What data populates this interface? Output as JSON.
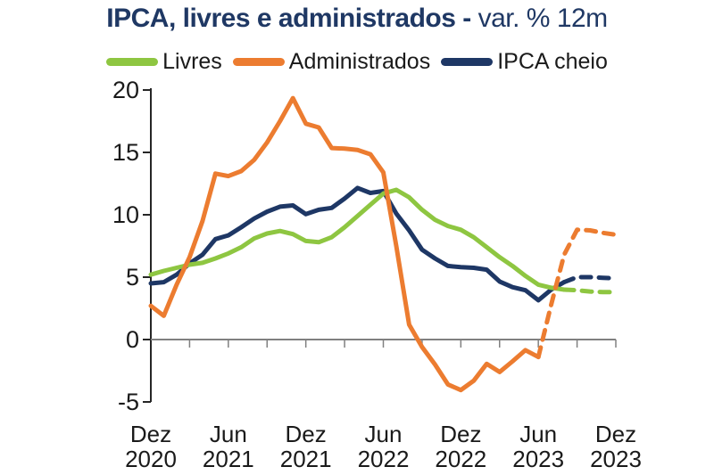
{
  "title": {
    "bold": "IPCA, livres e administrados -",
    "regular": " var. % 12m",
    "color": "#1F3864"
  },
  "colors": {
    "axis_line": "#262626",
    "zero_line": "#808080",
    "tick": "#808080",
    "label_text": "#1a1a1a",
    "background": "#ffffff"
  },
  "chart_data": {
    "type": "line",
    "title": "IPCA, livres e administrados - var. % 12m",
    "ylabel": "",
    "xlabel": "",
    "ylim": [
      -5,
      20
    ],
    "y_ticks": [
      20,
      15,
      10,
      5,
      0,
      -5
    ],
    "grid": false,
    "legend_position": "top",
    "x_monthly_from": "Dez 2020",
    "x_monthly_to": "Dez 2023",
    "x_tick_labels": [
      {
        "month": "Dez",
        "year": "2020"
      },
      {
        "month": "Jun",
        "year": "2021"
      },
      {
        "month": "Dez",
        "year": "2021"
      },
      {
        "month": "Jun",
        "year": "2022"
      },
      {
        "month": "Dez",
        "year": "2022"
      },
      {
        "month": "Jun",
        "year": "2023"
      },
      {
        "month": "Dez",
        "year": "2023"
      }
    ],
    "forecast_style": "dashed segments after last actual observation",
    "series": [
      {
        "name": "Livres",
        "color": "#8EC641",
        "solid_until_index": 32,
        "values": [
          5.2,
          5.5,
          5.75,
          6.0,
          6.15,
          6.5,
          6.9,
          7.4,
          8.1,
          8.5,
          8.7,
          8.45,
          7.9,
          7.8,
          8.2,
          9.0,
          9.9,
          10.8,
          11.7,
          12.0,
          11.4,
          10.4,
          9.6,
          9.1,
          8.8,
          8.2,
          7.4,
          6.6,
          5.9,
          5.1,
          4.4,
          4.15,
          4.0,
          3.95,
          3.85,
          3.8,
          3.8
        ]
      },
      {
        "name": "Administrados",
        "color": "#EC7C30",
        "solid_until_index": 30,
        "values": [
          2.7,
          1.9,
          4.4,
          6.6,
          9.5,
          13.3,
          13.1,
          13.5,
          14.4,
          15.8,
          17.5,
          19.35,
          17.3,
          17.0,
          15.35,
          15.3,
          15.2,
          14.85,
          13.4,
          7.5,
          1.2,
          -0.6,
          -2.0,
          -3.6,
          -4.05,
          -3.3,
          -1.95,
          -2.6,
          -1.75,
          -0.85,
          -1.4,
          2.8,
          6.8,
          8.8,
          8.75,
          8.55,
          8.4
        ]
      },
      {
        "name": "IPCA cheio",
        "color": "#1E3765",
        "solid_until_index": 32,
        "values": [
          4.5,
          4.6,
          5.2,
          6.1,
          6.8,
          8.05,
          8.35,
          9.0,
          9.7,
          10.25,
          10.65,
          10.75,
          10.05,
          10.4,
          10.55,
          11.3,
          12.15,
          11.75,
          11.9,
          10.1,
          8.75,
          7.2,
          6.5,
          5.9,
          5.8,
          5.75,
          5.6,
          4.65,
          4.2,
          3.95,
          3.15,
          4.0,
          4.6,
          5.0,
          5.0,
          4.95,
          4.9
        ]
      }
    ]
  }
}
